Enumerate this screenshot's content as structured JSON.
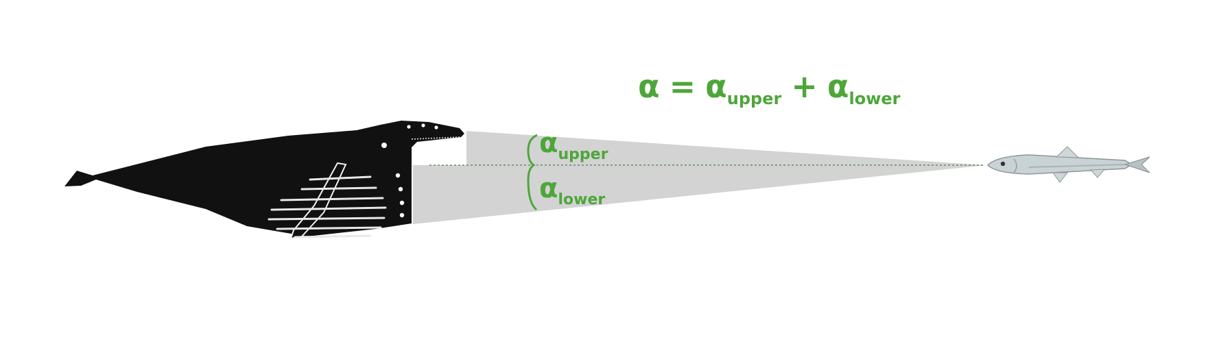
{
  "equation": {
    "lhs": "α",
    "equals": "=",
    "term1_symbol": "α",
    "term1_subscript": "upper",
    "plus": "+",
    "term2_symbol": "α",
    "term2_subscript": "lower"
  },
  "angle_labels": {
    "upper_symbol": "α",
    "upper_subscript": "upper",
    "lower_symbol": "α",
    "lower_subscript": "lower"
  },
  "colors": {
    "accent": "#4ea63a",
    "cone": "#d3d3d3",
    "whale": "#111111",
    "fish_body": "#c9d2d4",
    "guide_line": "#5e8f5e"
  }
}
